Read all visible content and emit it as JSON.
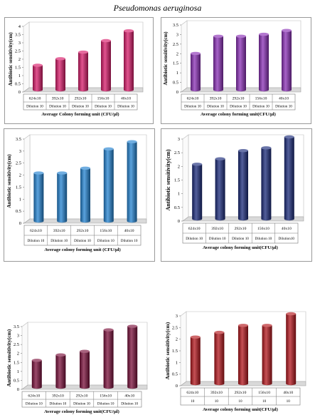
{
  "title": "Pseudomonas aeruginosa",
  "chart_data": [
    {
      "type": "bar",
      "panel": "top-left",
      "categories": [
        "624x10",
        "392x10",
        "292x10",
        "156x10",
        "40x10"
      ],
      "dilutions": [
        "Dilution 10",
        "Dilution 10",
        "Dilution 10",
        "Dilution 10",
        "Dilution 10"
      ],
      "values": [
        1.5,
        1.9,
        2.3,
        3.0,
        3.6
      ],
      "ylim": [
        0,
        4
      ],
      "yticks": [
        "0",
        "0.5",
        "1",
        "1.5",
        "2",
        "2.5",
        "3",
        "3.5",
        "4"
      ],
      "xlabel": "Average Colony forming unit (CFU/µl)",
      "ylabel": "Antibiotic sensitivity(cm)",
      "color": "#d81b6a"
    },
    {
      "type": "bar",
      "panel": "top-right",
      "categories": [
        "624x10",
        "392x10",
        "292x10",
        "156x10",
        "40x10"
      ],
      "dilutions": [
        "Dilution 10",
        "Dilution 10",
        "Dilution 10",
        "Dilution 10",
        "Dilution 10"
      ],
      "values": [
        1.9,
        2.8,
        2.8,
        2.9,
        3.1
      ],
      "ylim": [
        0,
        3.5
      ],
      "yticks": [
        "0",
        "0.5",
        "1",
        "1.5",
        "2",
        "2.5",
        "3",
        "3.5"
      ],
      "xlabel": "Average colony forming unit(CFU/µl)",
      "ylabel": "Antibiotic sensitivity(cm)",
      "color": "#8a2fb5"
    },
    {
      "type": "bar",
      "panel": "middle-left",
      "categories": [
        "624x10",
        "392x10",
        "292x10",
        "156x10",
        "40x10"
      ],
      "dilutions": [
        "Dilution 10",
        "Dilution 10",
        "Dilution 10",
        "Dilution 10",
        "Dilution 10"
      ],
      "values": [
        2.0,
        2.0,
        2.2,
        3.0,
        3.3
      ],
      "ylim": [
        0,
        3.5
      ],
      "yticks": [
        "0",
        "0.5",
        "1",
        "1.5",
        "2",
        "2.5",
        "3",
        "3.5"
      ],
      "xlabel": "Average colony forming unit (CFU/µl)",
      "ylabel": "Antibiotic sensitivity(cm)",
      "color": "#2383d1"
    },
    {
      "type": "bar",
      "panel": "middle-right",
      "categories": [
        "624x10",
        "392x10",
        "292x10",
        "156x10",
        "40x10"
      ],
      "dilutions": [
        "Dilution 10",
        "Dilution 10",
        "Dilution 10",
        "Dilution 10",
        "Dilution10"
      ],
      "values": [
        2.0,
        2.2,
        2.5,
        2.6,
        3.0
      ],
      "ylim": [
        0,
        3
      ],
      "yticks": [
        "0",
        "0.5",
        "1",
        "1.5",
        "2",
        "2.5",
        "3"
      ],
      "xlabel": "Average colony forming unit(CFU/µl)",
      "ylabel": "Antibiotic sensitivity(cm)",
      "color": "#1a2a7a"
    },
    {
      "type": "bar",
      "panel": "bottom-left",
      "categories": [
        "624x10",
        "392x10",
        "292x10",
        "156x10",
        "40x10"
      ],
      "dilutions": [
        "Dilution 10",
        "Dilution 10",
        "Dilution 10",
        "Dilution 10",
        "Dilution 10"
      ],
      "values": [
        1.5,
        1.8,
        2.0,
        3.2,
        3.4
      ],
      "ylim": [
        0,
        3.5
      ],
      "yticks": [
        "0",
        "0.5",
        "1",
        "1.5",
        "2",
        "2.5",
        "3",
        "3.5"
      ],
      "xlabel": "Average colony forming unit(CFU/µl)",
      "ylabel": "Antibiotic sensitivity(cm)",
      "color": "#7a0f3a"
    },
    {
      "type": "bar",
      "panel": "bottom-right",
      "categories": [
        "624x10",
        "392x10",
        "292x10",
        "156x10",
        "40x10"
      ],
      "dilutions": [
        "10",
        "10",
        "10",
        "10",
        "10"
      ],
      "values": [
        2.0,
        2.2,
        2.5,
        2.5,
        3.0
      ],
      "ylim": [
        0,
        3
      ],
      "yticks": [
        "0",
        "0.5",
        "1",
        "1.5",
        "2",
        "2.5",
        "3"
      ],
      "xlabel": "Average colony forming unit(CFU/µl)",
      "ylabel": "Antibiotic sensitivity(cm)",
      "color": "#b3161c"
    }
  ]
}
